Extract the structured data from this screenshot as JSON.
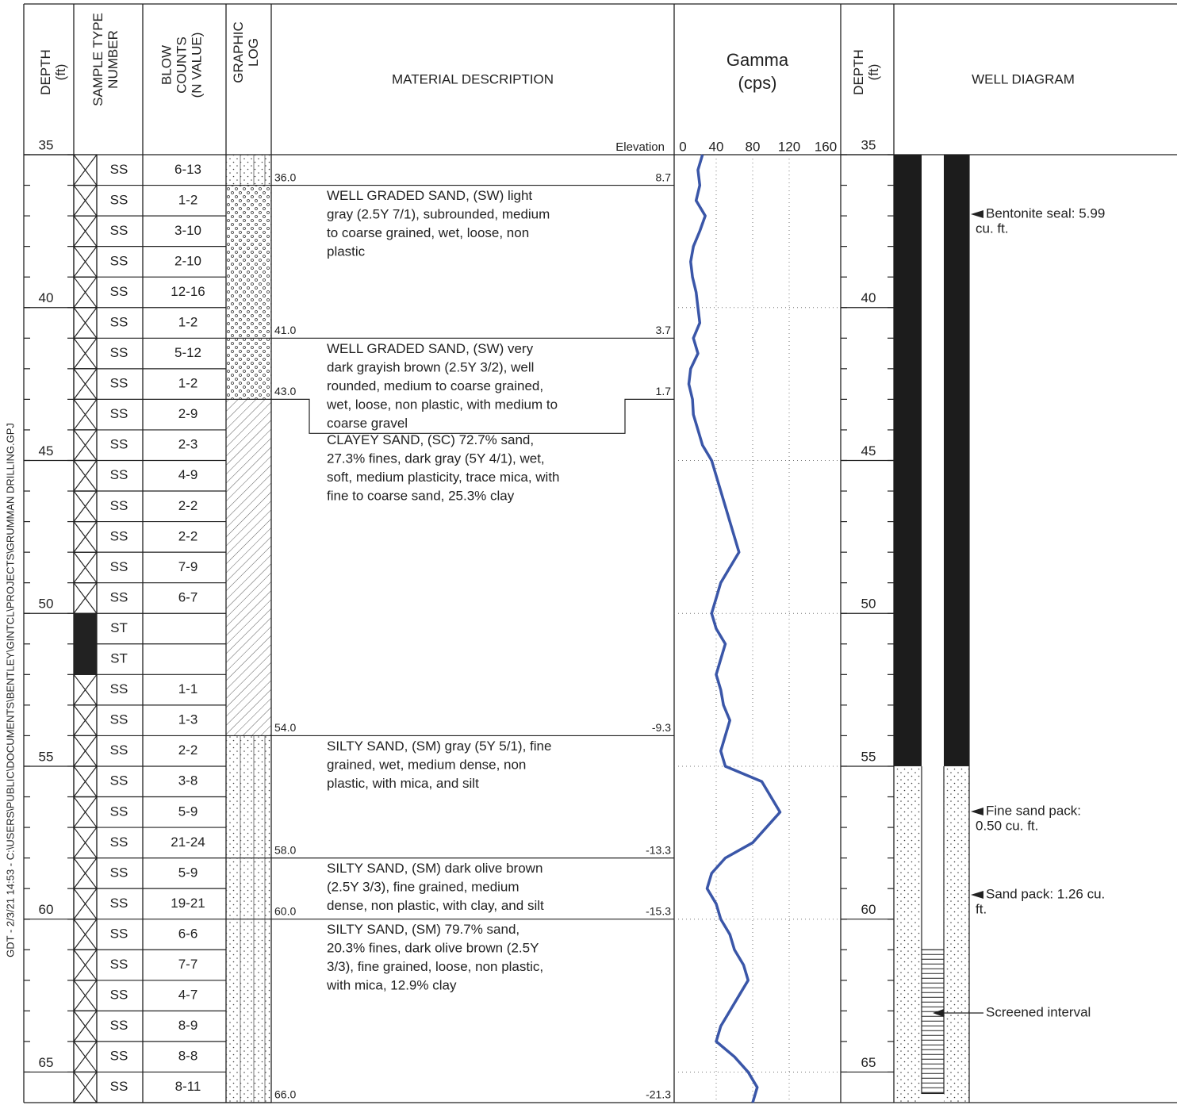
{
  "sidebar": "GDT - 2/3/21 14:53 - C:\\USERS\\PUBLIC\\DOCUMENTS\\BENTLEY\\GINTCL\\PROJECTS\\GRUMMAN DRILLING.GPJ",
  "columns": {
    "depth": [
      "DEPTH",
      "(ft)"
    ],
    "sample": [
      "SAMPLE TYPE",
      "NUMBER"
    ],
    "blows": [
      "BLOW",
      "COUNTS",
      "(N VALUE)"
    ],
    "graphic": [
      "GRAPHIC",
      "LOG"
    ],
    "material": "MATERIAL DESCRIPTION",
    "elevation": "Elevation"
  },
  "depth": {
    "ylim": [
      35,
      66
    ],
    "ticks": [
      35,
      40,
      45,
      50,
      55,
      60,
      65
    ]
  },
  "samples": [
    {
      "depth": 35,
      "type": "SS",
      "blows": "6-13"
    },
    {
      "depth": 36,
      "type": "SS",
      "blows": "1-2"
    },
    {
      "depth": 37,
      "type": "SS",
      "blows": "3-10"
    },
    {
      "depth": 38,
      "type": "SS",
      "blows": "2-10"
    },
    {
      "depth": 39,
      "type": "SS",
      "blows": "12-16"
    },
    {
      "depth": 40,
      "type": "SS",
      "blows": "1-2"
    },
    {
      "depth": 41,
      "type": "SS",
      "blows": "5-12"
    },
    {
      "depth": 42,
      "type": "SS",
      "blows": "1-2"
    },
    {
      "depth": 43,
      "type": "SS",
      "blows": "2-9"
    },
    {
      "depth": 44,
      "type": "SS",
      "blows": "2-3"
    },
    {
      "depth": 45,
      "type": "SS",
      "blows": "4-9"
    },
    {
      "depth": 46,
      "type": "SS",
      "blows": "2-2"
    },
    {
      "depth": 47,
      "type": "SS",
      "blows": "2-2"
    },
    {
      "depth": 48,
      "type": "SS",
      "blows": "7-9"
    },
    {
      "depth": 49,
      "type": "SS",
      "blows": "6-7"
    },
    {
      "depth": 50,
      "type": "ST"
    },
    {
      "depth": 51,
      "type": "ST"
    },
    {
      "depth": 52,
      "type": "SS",
      "blows": "1-1"
    },
    {
      "depth": 53,
      "type": "SS",
      "blows": "1-3"
    },
    {
      "depth": 54,
      "type": "SS",
      "blows": "2-2"
    },
    {
      "depth": 55,
      "type": "SS",
      "blows": "3-8"
    },
    {
      "depth": 56,
      "type": "SS",
      "blows": "5-9"
    },
    {
      "depth": 57,
      "type": "SS",
      "blows": "21-24"
    },
    {
      "depth": 58,
      "type": "SS",
      "blows": "5-9"
    },
    {
      "depth": 59,
      "type": "SS",
      "blows": "19-21"
    },
    {
      "depth": 60,
      "type": "SS",
      "blows": "6-6"
    },
    {
      "depth": 61,
      "type": "SS",
      "blows": "7-7"
    },
    {
      "depth": 62,
      "type": "SS",
      "blows": "4-7"
    },
    {
      "depth": 63,
      "type": "SS",
      "blows": "8-9"
    },
    {
      "depth": 64,
      "type": "SS",
      "blows": "8-8"
    },
    {
      "depth": 65,
      "type": "SS",
      "blows": "8-11"
    }
  ],
  "layers": [
    {
      "depth": {
        "value": 36,
        "label": "36.0"
      },
      "elevation": 8.7,
      "description": [
        "WELL GRADED SAND, (SW) light",
        "gray (2.5Y 7/1), subrounded, medium",
        "to coarse grained, wet, loose, non",
        "plastic"
      ]
    },
    {
      "depth": {
        "value": 41,
        "label": "41.0"
      },
      "elevation": 3.7,
      "description": [
        "WELL GRADED SAND, (SW) very",
        "dark grayish brown (2.5Y 3/2), well",
        "rounded, medium to coarse grained,",
        "wet, loose, non plastic, with medium to",
        "coarse gravel"
      ]
    },
    {
      "depth": {
        "value": 43,
        "label": "43.0"
      },
      "elevation": 1.7,
      "description": [
        "CLAYEY SAND, (SC) 72.7% sand,",
        "27.3% fines, dark gray (5Y 4/1), wet,",
        "soft, medium plasticity, trace mica, with",
        "fine to coarse sand, 25.3% clay"
      ]
    },
    {
      "depth": {
        "value": 54,
        "label": "54.0"
      },
      "elevation": -9.3,
      "description": [
        "SILTY SAND, (SM) gray (5Y 5/1), fine",
        "grained, wet, medium dense, non",
        "plastic, with mica, and silt"
      ]
    },
    {
      "depth": {
        "value": 58,
        "label": "58.0"
      },
      "elevation": -13.3,
      "description": [
        "SILTY SAND, (SM) dark olive brown",
        "(2.5Y 3/3), fine grained, medium",
        "dense, non plastic, with clay, and silt"
      ]
    },
    {
      "depth": {
        "value": 60,
        "label": "60.0"
      },
      "elevation": -15.3,
      "description": [
        "SILTY SAND, (SM) 79.7% sand,",
        "20.3% fines, dark olive brown (2.5Y",
        "3/3), fine grained, loose, non plastic,",
        "with mica, 12.9% clay"
      ]
    },
    {
      "depth": {
        "value": 66,
        "label": "66.0"
      },
      "elevation": -21.3
    }
  ],
  "gamma": {
    "title": [
      "Gamma",
      "(cps)"
    ],
    "color": "#3a56a8",
    "xlim": [
      0,
      160
    ],
    "xticks": [
      0,
      40,
      80,
      120,
      160
    ],
    "depth": [
      35,
      35.5,
      36,
      36.5,
      37,
      37.5,
      38,
      38.5,
      39,
      39.5,
      40,
      40.5,
      41,
      41.5,
      42,
      42.5,
      43,
      43.5,
      44,
      44.5,
      45,
      45.5,
      46,
      46.5,
      47,
      47.5,
      48,
      48.5,
      49,
      49.5,
      50,
      50.5,
      51,
      51.5,
      52,
      52.5,
      53,
      53.5,
      54,
      54.5,
      55,
      55.5,
      56,
      56.5,
      57,
      57.5,
      58,
      58.5,
      59,
      59.5,
      60,
      60.5,
      61,
      61.5,
      62,
      62.5,
      63,
      63.5,
      64,
      64.5,
      65,
      65.5,
      66
    ],
    "values": [
      25,
      20,
      22,
      18,
      28,
      22,
      15,
      12,
      14,
      18,
      20,
      22,
      15,
      20,
      12,
      10,
      14,
      15,
      20,
      25,
      35,
      40,
      45,
      50,
      55,
      60,
      65,
      55,
      45,
      40,
      35,
      40,
      50,
      45,
      40,
      45,
      48,
      55,
      50,
      45,
      50,
      90,
      100,
      110,
      95,
      80,
      50,
      35,
      30,
      40,
      45,
      55,
      60,
      70,
      75,
      65,
      55,
      45,
      40,
      60,
      75,
      85,
      80
    ]
  },
  "well": {
    "title": "WELL DIAGRAM",
    "seal": {
      "label": [
        "Bentonite seal: 5.99",
        "cu. ft."
      ],
      "top": 35,
      "bottom": 55
    },
    "fine_sand": {
      "label": [
        "Fine sand pack:",
        "0.50 cu. ft."
      ],
      "top": 55,
      "bottom": 57
    },
    "sand_pack": {
      "label": [
        "Sand pack: 1.26 cu.",
        "ft."
      ],
      "top": 57,
      "bottom": 66
    },
    "screen": {
      "label": "Screened interval",
      "top": 61,
      "bottom": 65.7
    }
  }
}
